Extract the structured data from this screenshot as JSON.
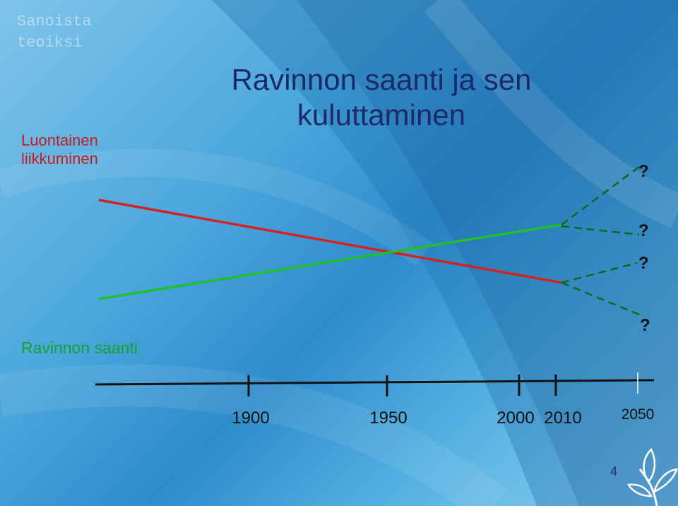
{
  "logo": {
    "line1": "Sanoista",
    "line2": "teoiksi"
  },
  "title": {
    "line1": "Ravinnon saanti ja sen",
    "line2": "kuluttaminen"
  },
  "labels": {
    "red_line1": "Luontainen",
    "red_line2": "liikkuminen",
    "green": "Ravinnon saanti"
  },
  "colors": {
    "red": "#d42222",
    "green": "#1fbf2f",
    "dashed": "#0b6b18",
    "title": "#1a2a6c"
  },
  "chart_data": {
    "type": "line",
    "x_ticks": [
      "1900",
      "1950",
      "2000",
      "2010",
      "2050"
    ],
    "series": [
      {
        "name": "Luontainen liikkuminen",
        "trend": "decreasing",
        "color": "#d42222"
      },
      {
        "name": "Ravinnon saanti",
        "trend": "increasing",
        "color": "#1fbf2f"
      }
    ],
    "projection_markers": [
      "?",
      "?",
      "?",
      "?"
    ]
  },
  "page_number": "4"
}
